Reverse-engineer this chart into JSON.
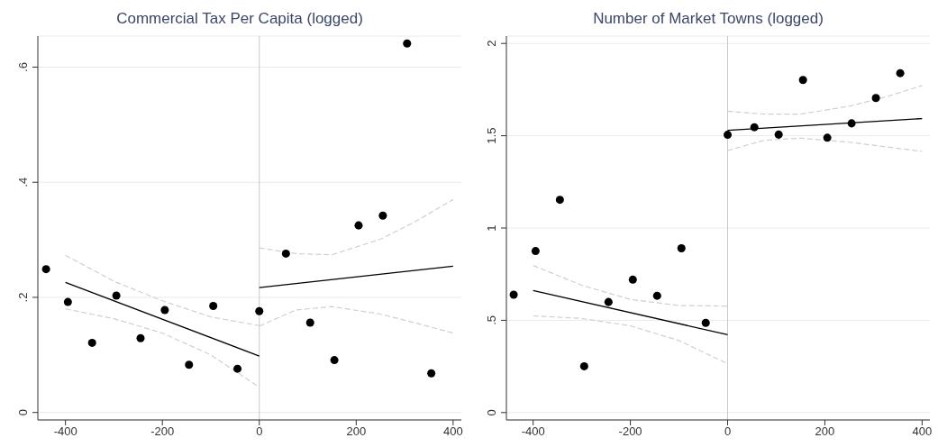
{
  "chart_data": [
    {
      "type": "scatter",
      "title": "Commercial Tax Per Capita (logged)",
      "xlim": [
        -457,
        417
      ],
      "xticks": [
        -400,
        -200,
        0,
        200,
        400
      ],
      "ylim": [
        -0.013,
        0.654
      ],
      "yticks": [
        {
          "value": 0,
          "label": "0"
        },
        {
          "value": 0.2,
          "label": ".2"
        },
        {
          "value": 0.4,
          "label": ".4"
        },
        {
          "value": 0.6,
          "label": ".6"
        }
      ],
      "grid": "y",
      "ref_lines": [
        {
          "axis": "x",
          "value": 0,
          "color": "#c8c8c8"
        }
      ],
      "series": [
        {
          "color": "#000000",
          "marker": "circle",
          "x": [
            -440,
            -395,
            -345,
            -295,
            -245,
            -195,
            -145,
            -95,
            -45,
            0,
            55,
            105,
            155,
            205,
            255,
            305,
            355
          ],
          "values": [
            0.249,
            0.192,
            0.121,
            0.203,
            0.129,
            0.178,
            0.083,
            0.185,
            0.076,
            0.176,
            0.276,
            0.156,
            0.091,
            0.325,
            0.342,
            0.641,
            0.068
          ]
        },
        {
          "type": "line",
          "color": "#000000",
          "marker": "none",
          "line_style": "solid",
          "x": [
            -400,
            0
          ],
          "values": [
            0.226,
            0.098
          ]
        },
        {
          "type": "line",
          "color": "#d0d0d0",
          "marker": "none",
          "line_style": "dashed",
          "x": [
            -400,
            -300,
            -200,
            -100,
            0
          ],
          "values": [
            0.273,
            0.228,
            0.194,
            0.166,
            0.151
          ]
        },
        {
          "type": "line",
          "color": "#d0d0d0",
          "marker": "none",
          "line_style": "dashed",
          "x": [
            -400,
            -300,
            -200,
            -100,
            0
          ],
          "values": [
            0.18,
            0.163,
            0.138,
            0.1,
            0.044
          ]
        },
        {
          "type": "line",
          "color": "#000000",
          "marker": "none",
          "line_style": "solid",
          "x": [
            0,
            400
          ],
          "values": [
            0.217,
            0.254
          ]
        },
        {
          "type": "line",
          "color": "#d0d0d0",
          "marker": "none",
          "line_style": "dashed",
          "x": [
            0,
            75,
            150,
            250,
            325,
            400
          ],
          "values": [
            0.286,
            0.276,
            0.274,
            0.301,
            0.333,
            0.37
          ]
        },
        {
          "type": "line",
          "color": "#d0d0d0",
          "marker": "none",
          "line_style": "dashed",
          "x": [
            0,
            75,
            150,
            250,
            325,
            400
          ],
          "values": [
            0.15,
            0.178,
            0.184,
            0.171,
            0.155,
            0.138
          ]
        }
      ]
    },
    {
      "type": "scatter",
      "title": "Number of Market Towns (logged)",
      "xlim": [
        -455,
        416
      ],
      "xticks": [
        -400,
        -200,
        0,
        200,
        400
      ],
      "ylim": [
        -0.04,
        2.04
      ],
      "yticks": [
        {
          "value": 0,
          "label": "0"
        },
        {
          "value": 0.5,
          "label": ".5"
        },
        {
          "value": 1,
          "label": "1"
        },
        {
          "value": 1.5,
          "label": "1.5"
        },
        {
          "value": 2,
          "label": "2"
        }
      ],
      "grid": "y",
      "ref_lines": [
        {
          "axis": "x",
          "value": 0,
          "color": "#c8c8c8"
        }
      ],
      "series": [
        {
          "color": "#000000",
          "marker": "circle",
          "x": [
            -440,
            -395,
            -345,
            -295,
            -245,
            -195,
            -145,
            -95,
            -45,
            0,
            55,
            105,
            155,
            205,
            255,
            305,
            355
          ],
          "values": [
            0.639,
            0.875,
            1.153,
            0.251,
            0.599,
            0.72,
            0.633,
            0.89,
            0.486,
            1.505,
            1.546,
            1.506,
            1.802,
            1.489,
            1.567,
            1.704,
            1.839
          ]
        },
        {
          "type": "line",
          "color": "#000000",
          "marker": "none",
          "line_style": "solid",
          "x": [
            -400,
            0
          ],
          "values": [
            0.661,
            0.422
          ]
        },
        {
          "type": "line",
          "color": "#d0d0d0",
          "marker": "none",
          "line_style": "dashed",
          "x": [
            -400,
            -300,
            -200,
            -100,
            0
          ],
          "values": [
            0.797,
            0.69,
            0.613,
            0.58,
            0.577
          ]
        },
        {
          "type": "line",
          "color": "#d0d0d0",
          "marker": "none",
          "line_style": "dashed",
          "x": [
            -400,
            -300,
            -200,
            -100,
            0
          ],
          "values": [
            0.524,
            0.51,
            0.47,
            0.39,
            0.265
          ]
        },
        {
          "type": "line",
          "color": "#000000",
          "marker": "none",
          "line_style": "solid",
          "x": [
            0,
            400
          ],
          "values": [
            1.529,
            1.593
          ]
        },
        {
          "type": "line",
          "color": "#d0d0d0",
          "marker": "none",
          "line_style": "dashed",
          "x": [
            0,
            75,
            150,
            250,
            325,
            400
          ],
          "values": [
            1.633,
            1.617,
            1.617,
            1.66,
            1.71,
            1.772
          ]
        },
        {
          "type": "line",
          "color": "#d0d0d0",
          "marker": "none",
          "line_style": "dashed",
          "x": [
            0,
            75,
            150,
            250,
            325,
            400
          ],
          "values": [
            1.42,
            1.475,
            1.487,
            1.465,
            1.44,
            1.415
          ]
        }
      ]
    }
  ]
}
